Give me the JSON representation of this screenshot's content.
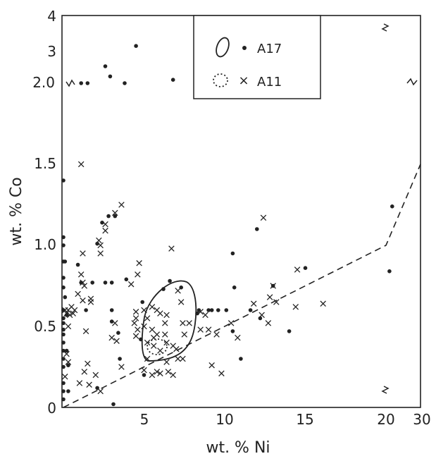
{
  "chart_data": {
    "type": "scatter",
    "title": "",
    "xlabel": "wt. % Ni",
    "ylabel": "wt. % Co",
    "x_axis": {
      "scale": "piecewise-linear with break between 20 and 30",
      "tick_labels": [
        "0",
        "5",
        "10",
        "15",
        "20",
        "30"
      ],
      "lim": [
        0,
        30
      ]
    },
    "y_axis": {
      "scale": "piecewise-linear with break above 2.0",
      "tick_labels": [
        "0",
        "0.5",
        "1.0",
        "1.5",
        "2.0",
        "3",
        "4"
      ],
      "lim": [
        0,
        4
      ]
    },
    "grid": false,
    "legend": {
      "placement": "top-center",
      "entries": [
        {
          "field_outline": "solid",
          "marker": "dot",
          "label": "A17"
        },
        {
          "field_outline": "dotted",
          "marker": "x",
          "label": "A11"
        }
      ]
    },
    "series": [
      {
        "name": "A17",
        "marker": "dot",
        "points": [
          [
            0,
            1.4
          ],
          [
            0,
            1.05
          ],
          [
            0,
            1.0
          ],
          [
            0,
            0.9
          ],
          [
            0,
            0.8
          ],
          [
            0,
            0.74
          ],
          [
            0,
            0.6
          ],
          [
            0,
            0.55
          ],
          [
            0,
            0.52
          ],
          [
            0,
            0.48
          ],
          [
            0,
            0.45
          ],
          [
            0,
            0.4
          ],
          [
            0,
            0.35
          ],
          [
            0,
            0.3
          ],
          [
            0,
            0.25
          ],
          [
            0,
            0.15
          ],
          [
            0,
            0.1
          ],
          [
            0,
            0.05
          ],
          [
            0.1,
            0.9
          ],
          [
            0.1,
            0.68
          ],
          [
            0.2,
            0.57
          ],
          [
            0.2,
            0.35
          ],
          [
            0.3,
            0.26
          ],
          [
            0.3,
            0.1
          ],
          [
            1.1,
            2.0
          ],
          [
            1.5,
            2.0
          ],
          [
            2.6,
            2.5
          ],
          [
            2.9,
            2.2
          ],
          [
            3.8,
            2.0
          ],
          [
            4.5,
            3.1
          ],
          [
            6.8,
            2.1
          ],
          [
            0.9,
            0.88
          ],
          [
            1.1,
            0.77
          ],
          [
            1.8,
            0.77
          ],
          [
            2.6,
            0.77
          ],
          [
            3.0,
            0.77
          ],
          [
            3.9,
            0.79
          ],
          [
            2.1,
            1.01
          ],
          [
            2.4,
            1.14
          ],
          [
            2.8,
            1.18
          ],
          [
            3.2,
            1.18
          ],
          [
            3.0,
            0.6
          ],
          [
            3.0,
            0.53
          ],
          [
            3.4,
            0.46
          ],
          [
            3.5,
            0.3
          ],
          [
            3.1,
            0.02
          ],
          [
            2.1,
            0.12
          ],
          [
            1.4,
            0.6
          ],
          [
            4.9,
            0.65
          ],
          [
            6.2,
            0.73
          ],
          [
            6.6,
            0.78
          ],
          [
            7.3,
            0.74
          ],
          [
            8.3,
            0.58
          ],
          [
            9.0,
            0.6
          ],
          [
            9.2,
            0.6
          ],
          [
            10.5,
            0.95
          ],
          [
            10.6,
            0.74
          ],
          [
            10.5,
            0.47
          ],
          [
            11.0,
            0.3
          ],
          [
            11.6,
            0.6
          ],
          [
            12.0,
            1.1
          ],
          [
            12.2,
            0.55
          ],
          [
            13.0,
            0.75
          ],
          [
            15.0,
            0.86
          ],
          [
            14.0,
            0.47
          ],
          [
            10.1,
            0.6
          ],
          [
            9.6,
            0.6
          ],
          [
            8.4,
            0.6
          ],
          [
            4.8,
            0.42
          ],
          [
            5.0,
            0.2
          ],
          [
            21.0,
            0.84
          ],
          [
            21.8,
            1.24
          ]
        ]
      },
      {
        "name": "A11",
        "marker": "x",
        "points": [
          [
            1.1,
            1.5
          ],
          [
            2.2,
            1.03
          ],
          [
            2.3,
            1.0
          ],
          [
            2.3,
            0.95
          ],
          [
            2.6,
            1.13
          ],
          [
            2.6,
            1.09
          ],
          [
            3.2,
            1.2
          ],
          [
            3.6,
            1.25
          ],
          [
            1.2,
            0.95
          ],
          [
            1.2,
            0.77
          ],
          [
            1.3,
            0.75
          ],
          [
            0.1,
            0.6
          ],
          [
            0.2,
            0.58
          ],
          [
            0.3,
            0.6
          ],
          [
            0.4,
            0.57
          ],
          [
            0.5,
            0.62
          ],
          [
            0.6,
            0.58
          ],
          [
            0.7,
            0.6
          ],
          [
            0.3,
            0.5
          ],
          [
            0.2,
            0.33
          ],
          [
            0.3,
            0.28
          ],
          [
            0.1,
            0.19
          ],
          [
            0.9,
            0.7
          ],
          [
            1.1,
            0.82
          ],
          [
            1.2,
            0.66
          ],
          [
            1.7,
            0.65
          ],
          [
            1.4,
            0.47
          ],
          [
            1.7,
            0.67
          ],
          [
            1.5,
            0.27
          ],
          [
            1.3,
            0.22
          ],
          [
            1.0,
            0.15
          ],
          [
            1.6,
            0.14
          ],
          [
            2.0,
            0.2
          ],
          [
            2.3,
            0.1
          ],
          [
            3.0,
            0.43
          ],
          [
            3.3,
            0.41
          ],
          [
            3.2,
            0.52
          ],
          [
            3.6,
            0.25
          ],
          [
            4.7,
            0.89
          ],
          [
            4.2,
            0.76
          ],
          [
            4.6,
            0.82
          ],
          [
            6.7,
            0.98
          ],
          [
            4.5,
            0.59
          ],
          [
            4.5,
            0.55
          ],
          [
            4.4,
            0.52
          ],
          [
            4.6,
            0.48
          ],
          [
            4.5,
            0.44
          ],
          [
            5.0,
            0.6
          ],
          [
            5.2,
            0.55
          ],
          [
            5.0,
            0.5
          ],
          [
            5.5,
            0.48
          ],
          [
            5.6,
            0.43
          ],
          [
            5.2,
            0.4
          ],
          [
            5.5,
            0.62
          ],
          [
            5.8,
            0.6
          ],
          [
            6.0,
            0.58
          ],
          [
            6.4,
            0.57
          ],
          [
            6.3,
            0.52
          ],
          [
            6.3,
            0.45
          ],
          [
            5.6,
            0.38
          ],
          [
            6.0,
            0.35
          ],
          [
            5.8,
            0.45
          ],
          [
            6.4,
            0.4
          ],
          [
            6.8,
            0.38
          ],
          [
            5.2,
            0.3
          ],
          [
            5.0,
            0.23
          ],
          [
            5.5,
            0.2
          ],
          [
            5.8,
            0.22
          ],
          [
            6.0,
            0.21
          ],
          [
            6.5,
            0.22
          ],
          [
            6.8,
            0.2
          ],
          [
            6.4,
            0.28
          ],
          [
            7.1,
            0.3
          ],
          [
            7.0,
            0.36
          ],
          [
            7.4,
            0.3
          ],
          [
            7.1,
            0.72
          ],
          [
            7.3,
            0.65
          ],
          [
            7.4,
            0.52
          ],
          [
            7.8,
            0.52
          ],
          [
            7.5,
            0.45
          ],
          [
            8.5,
            0.59
          ],
          [
            8.8,
            0.57
          ],
          [
            8.5,
            0.48
          ],
          [
            9.0,
            0.48
          ],
          [
            9.5,
            0.45
          ],
          [
            9.2,
            0.26
          ],
          [
            9.8,
            0.21
          ],
          [
            10.4,
            0.52
          ],
          [
            10.8,
            0.43
          ],
          [
            11.8,
            0.64
          ],
          [
            12.4,
            1.17
          ],
          [
            12.3,
            0.57
          ],
          [
            12.7,
            0.52
          ],
          [
            12.8,
            0.68
          ],
          [
            13.2,
            0.65
          ],
          [
            13.0,
            0.75
          ],
          [
            14.4,
            0.62
          ],
          [
            14.5,
            0.85
          ],
          [
            16.1,
            0.64
          ]
        ]
      }
    ],
    "fields": [
      {
        "name": "A17 field",
        "outline": "solid"
      },
      {
        "name": "A11 field",
        "outline": "dotted"
      }
    ],
    "reference_line": {
      "style": "dashed",
      "points": [
        [
          0,
          0
        ],
        [
          20.0,
          1.0
        ],
        [
          30,
          1.5
        ]
      ]
    },
    "axis_break_marks": [
      "x-axis between 20 and 30",
      "y-axis above 2.0"
    ]
  }
}
